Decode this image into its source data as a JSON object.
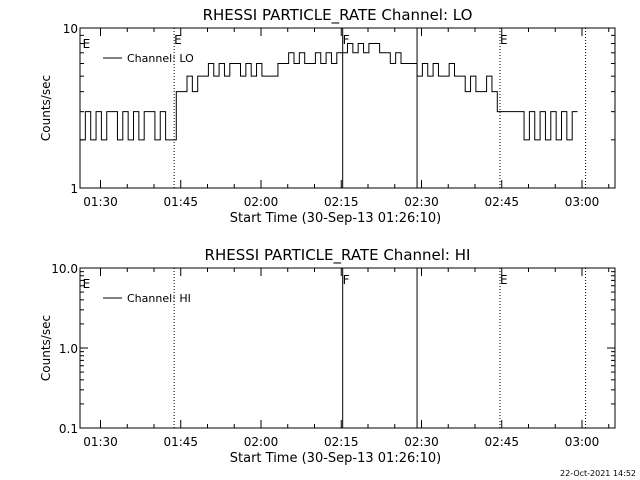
{
  "footer": {
    "timestamp": "22-Oct-2021 14:52"
  },
  "chart_data": [
    {
      "type": "line",
      "title": "RHESSI PARTICLE_RATE Channel: LO",
      "xlabel": "Start Time (30-Sep-13 01:26:10)",
      "ylabel": "Counts/sec",
      "x_unit": "minutes after 01:26:10",
      "xlim": [
        0,
        100
      ],
      "xticks": [
        3.83,
        18.83,
        33.83,
        48.83,
        63.83,
        78.83,
        93.83
      ],
      "xtick_labels": [
        "01:30",
        "01:45",
        "02:00",
        "02:15",
        "02:30",
        "02:45",
        "03:00"
      ],
      "yscale": "log",
      "ylim": [
        1,
        10
      ],
      "yticks": [
        1,
        10
      ],
      "ytick_labels": [
        "1",
        "10"
      ],
      "grid": false,
      "legend": {
        "placement": "top-left",
        "entries": [
          "Channel: LO"
        ]
      },
      "event_lines": [
        {
          "x": 17.6,
          "style": "dotted",
          "label": "E"
        },
        {
          "x": 49.1,
          "style": "solid",
          "label": "F"
        },
        {
          "x": 63.0,
          "style": "solid",
          "label": ""
        },
        {
          "x": 78.5,
          "style": "dotted",
          "label": "E"
        },
        {
          "x": 94.5,
          "style": "dotted",
          "label": ""
        }
      ],
      "edge_labels": [
        {
          "x": 0.3,
          "label": "E"
        }
      ],
      "series": [
        {
          "name": "Channel: LO",
          "x": [
            0,
            1,
            2,
            3,
            4,
            5,
            6,
            7,
            8,
            9,
            10,
            11,
            12,
            13,
            14,
            15,
            16,
            17,
            18,
            19,
            20,
            21,
            22,
            23,
            24,
            25,
            26,
            27,
            28,
            29,
            30,
            31,
            32,
            33,
            34,
            35,
            36,
            37,
            38,
            39,
            40,
            41,
            42,
            43,
            44,
            45,
            46,
            47,
            48,
            49,
            50,
            51,
            52,
            53,
            54,
            55,
            56,
            57,
            58,
            59,
            60,
            61,
            62,
            63,
            64,
            65,
            66,
            67,
            68,
            69,
            70,
            71,
            72,
            73,
            74,
            75,
            76,
            77,
            78,
            79,
            80,
            81,
            82,
            83,
            84,
            85,
            86,
            87,
            88,
            89,
            90,
            91,
            92
          ],
          "y": [
            2,
            3,
            2,
            3,
            2,
            3,
            3,
            2,
            3,
            2,
            3,
            2,
            3,
            3,
            2,
            3,
            2,
            2,
            4,
            4,
            5,
            4,
            5,
            5,
            6,
            5,
            6,
            5,
            6,
            6,
            5,
            6,
            5,
            6,
            5,
            5,
            5,
            6,
            6,
            7,
            6,
            7,
            6,
            6,
            7,
            6,
            7,
            6,
            7,
            7,
            8,
            7,
            8,
            7,
            8,
            8,
            7,
            7,
            6,
            7,
            6,
            6,
            6,
            5,
            6,
            5,
            6,
            5,
            5,
            6,
            5,
            5,
            4,
            5,
            4,
            4,
            5,
            4,
            3,
            3,
            3,
            3,
            3,
            2,
            3,
            2,
            3,
            2,
            3,
            2,
            3,
            2,
            3
          ]
        }
      ]
    },
    {
      "type": "line",
      "title": "RHESSI PARTICLE_RATE Channel: HI",
      "xlabel": "Start Time (30-Sep-13 01:26:10)",
      "ylabel": "Counts/sec",
      "x_unit": "minutes after 01:26:10",
      "xlim": [
        0,
        100
      ],
      "xticks": [
        3.83,
        18.83,
        33.83,
        48.83,
        63.83,
        78.83,
        93.83
      ],
      "xtick_labels": [
        "01:30",
        "01:45",
        "02:00",
        "02:15",
        "02:30",
        "02:45",
        "03:00"
      ],
      "yscale": "log",
      "ylim": [
        0.1,
        10
      ],
      "yticks": [
        0.1,
        1,
        10
      ],
      "ytick_labels": [
        "0.1",
        "1.0",
        "10.0"
      ],
      "grid": false,
      "legend": {
        "placement": "top-left",
        "entries": [
          "Channel: HI"
        ]
      },
      "event_lines": [
        {
          "x": 17.6,
          "style": "dotted",
          "label": ""
        },
        {
          "x": 49.1,
          "style": "solid",
          "label": "F"
        },
        {
          "x": 63.0,
          "style": "solid",
          "label": ""
        },
        {
          "x": 78.5,
          "style": "dotted",
          "label": "E"
        },
        {
          "x": 94.5,
          "style": "dotted",
          "label": ""
        }
      ],
      "edge_labels": [
        {
          "x": 0.3,
          "label": "E"
        }
      ],
      "series": [
        {
          "name": "Channel: HI",
          "x": [],
          "y": []
        }
      ]
    }
  ]
}
